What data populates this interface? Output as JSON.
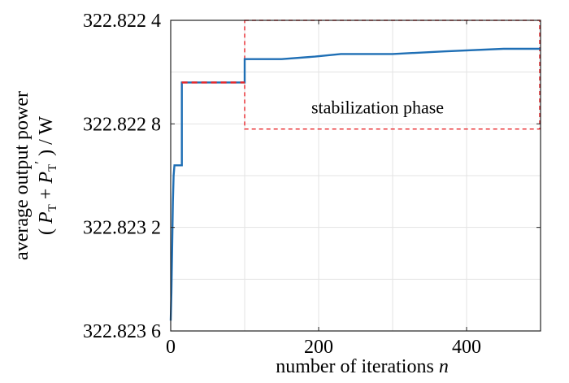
{
  "chart_data": {
    "type": "line",
    "xlim": [
      0,
      500
    ],
    "ylim": [
      322.8236,
      322.8224
    ],
    "y_reversed": true,
    "grid": true,
    "x_ticks": [
      {
        "value": 0,
        "label": "0"
      },
      {
        "value": 200,
        "label": "200"
      },
      {
        "value": 400,
        "label": "400"
      }
    ],
    "y_ticks": [
      {
        "value": 322.8224,
        "label": "322.822 4"
      },
      {
        "value": 322.8228,
        "label": "322.822 8"
      },
      {
        "value": 322.8232,
        "label": "322.823 2"
      },
      {
        "value": 322.8236,
        "label": "322.823 6"
      }
    ],
    "xlabel": {
      "text": "number of iterations ",
      "var": "n"
    },
    "ylabel": {
      "line1": "average output power",
      "line2": {
        "open": "( ",
        "p1": "P",
        "s1": "T",
        "plus": " + ",
        "p2": "P",
        "s2": "T",
        "prime": "′",
        "close": " ) / W"
      }
    },
    "series": [
      {
        "color": "#1f6fb5",
        "points": [
          [
            0,
            322.82356
          ],
          [
            1,
            322.82345
          ],
          [
            2,
            322.82328
          ],
          [
            3,
            322.8231
          ],
          [
            4,
            322.823
          ],
          [
            5,
            322.82296
          ],
          [
            7,
            322.82296
          ],
          [
            15,
            322.82296
          ],
          [
            15,
            322.82264
          ],
          [
            100,
            322.82264
          ],
          [
            100,
            322.82255
          ],
          [
            150,
            322.82255
          ],
          [
            195,
            322.82254
          ],
          [
            230,
            322.82253
          ],
          [
            300,
            322.82253
          ],
          [
            370,
            322.82252
          ],
          [
            450,
            322.82251
          ],
          [
            500,
            322.82251
          ]
        ]
      }
    ],
    "highlight_segment": {
      "x": [
        15,
        100
      ],
      "y": 322.82264,
      "color": "#e8262a"
    },
    "annotation_box": {
      "x": [
        100,
        500
      ],
      "y": [
        322.8224,
        322.82282
      ],
      "label": "stabilization phase",
      "color": "#e8262a"
    }
  }
}
